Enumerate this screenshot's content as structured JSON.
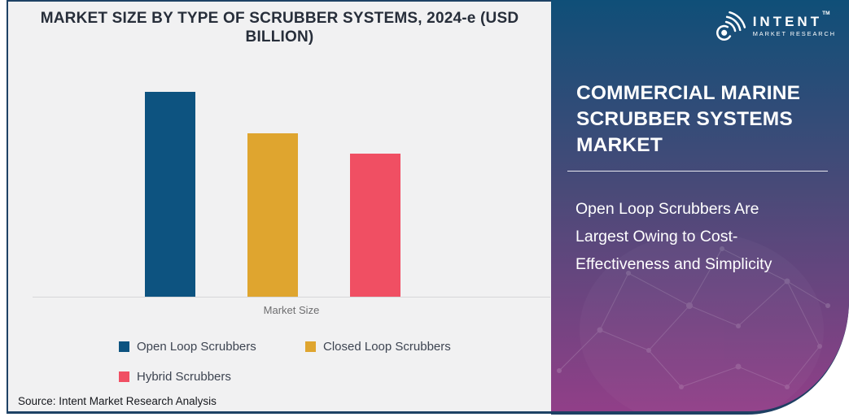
{
  "page": {
    "background": "#ffffff",
    "border_color": "#1e4265",
    "card_background": "#f1f1f2"
  },
  "chart_panel": {
    "source": "Source: Intent Market Research Analysis"
  },
  "chart_data": {
    "type": "bar",
    "title": "MARKET SIZE BY TYPE OF SCRUBBER SYSTEMS, 2024-e (USD BILLION)",
    "categories": [
      "Market Size"
    ],
    "xlabel": "Market Size",
    "ylabel": "",
    "series": [
      {
        "name": "Open Loop Scrubbers",
        "values": [
          1.0
        ],
        "color": "#0d5380"
      },
      {
        "name": "Closed Loop Scrubbers",
        "values": [
          0.8
        ],
        "color": "#dfa52f"
      },
      {
        "name": "Hybrid Scrubbers",
        "values": [
          0.7
        ],
        "color": "#f04f63"
      }
    ],
    "ylim": [
      0,
      1.12
    ],
    "grid": false,
    "legend_position": "bottom",
    "note": "No y-axis ticks or data labels are shown in the chart; values are relative bar-height estimates (Open Loop largest, then Closed Loop, then Hybrid)."
  },
  "side_panel": {
    "title": "COMMERCIAL MARINE SCRUBBER SYSTEMS MARKET",
    "subtitle": "Open Loop Scrubbers Are Largest Owing to Cost-Effectiveness and Simplicity",
    "gradient_top": "#0f4f78",
    "gradient_mid": "#494a78",
    "gradient_bottom": "#913f88",
    "text_color": "#ffffff"
  },
  "brand": {
    "name": "INTENT",
    "tagline": "MARKET RESEARCH",
    "tm": "TM"
  }
}
